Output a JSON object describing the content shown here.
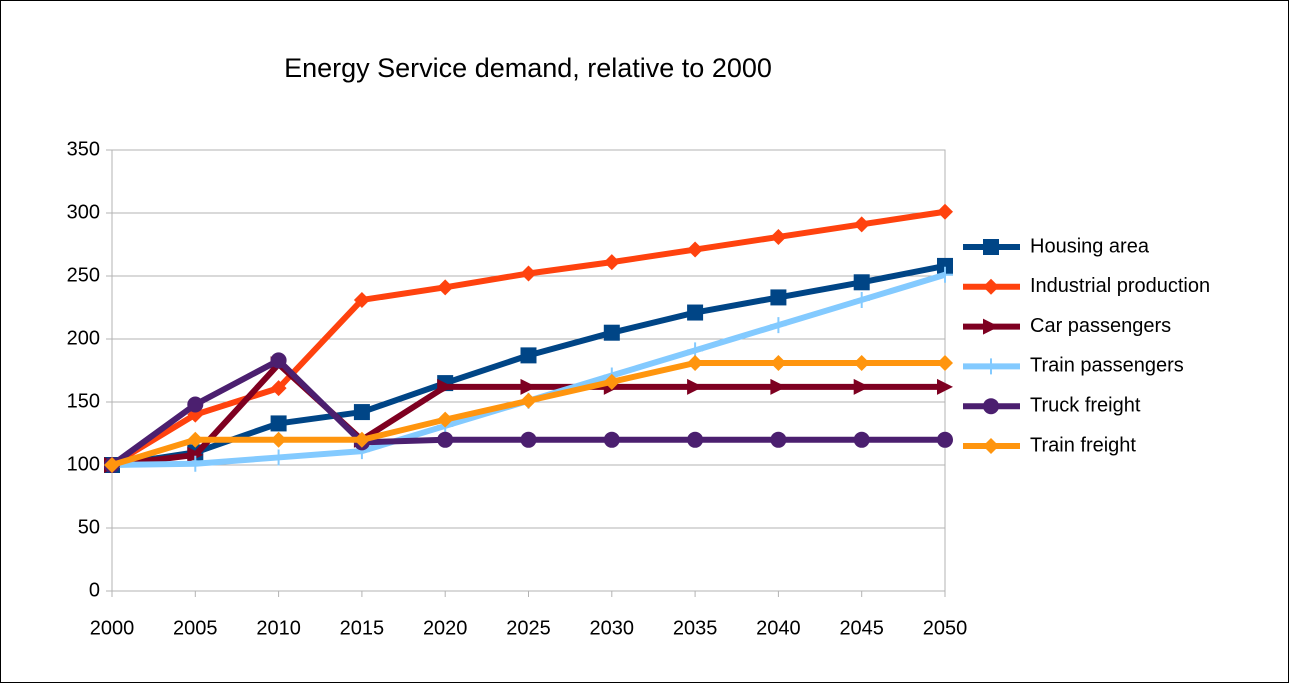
{
  "chart_data": {
    "type": "line",
    "title": "Energy Service demand, relative to 2000",
    "x": [
      2000,
      2005,
      2010,
      2015,
      2020,
      2025,
      2030,
      2035,
      2040,
      2045,
      2050
    ],
    "xlim": [
      2000,
      2050
    ],
    "xticks": [
      2000,
      2005,
      2010,
      2015,
      2020,
      2025,
      2030,
      2035,
      2040,
      2045,
      2050
    ],
    "ylim": [
      0,
      350
    ],
    "yticks": [
      0,
      50,
      100,
      150,
      200,
      250,
      300,
      350
    ],
    "grid": true,
    "legend": "right",
    "series": [
      {
        "name": "Housing area",
        "color": "#004586",
        "marker": "square",
        "values": [
          100,
          110,
          133,
          142,
          165,
          187,
          205,
          221,
          233,
          245,
          258
        ]
      },
      {
        "name": "Industrial production",
        "color": "#ff420e",
        "marker": "diamond",
        "values": [
          100,
          140,
          161,
          231,
          241,
          252,
          261,
          271,
          281,
          291,
          301
        ]
      },
      {
        "name": "Car passengers",
        "color": "#7e0021",
        "marker": "triangle",
        "values": [
          100,
          108,
          180,
          120,
          162,
          162,
          162,
          162,
          162,
          162,
          162
        ]
      },
      {
        "name": "Train passengers",
        "color": "#83caff",
        "marker": "plus",
        "values": [
          100,
          101,
          106,
          111,
          131,
          151,
          171,
          191,
          211,
          231,
          251
        ]
      },
      {
        "name": "Truck freight",
        "color": "#4b1f6f",
        "marker": "circle",
        "values": [
          100,
          148,
          183,
          118,
          120,
          120,
          120,
          120,
          120,
          120,
          120
        ]
      },
      {
        "name": "Train freight",
        "color": "#ff950e",
        "marker": "diamond",
        "values": [
          100,
          120,
          120,
          120,
          136,
          151,
          166,
          181,
          181,
          181,
          181
        ]
      }
    ]
  }
}
